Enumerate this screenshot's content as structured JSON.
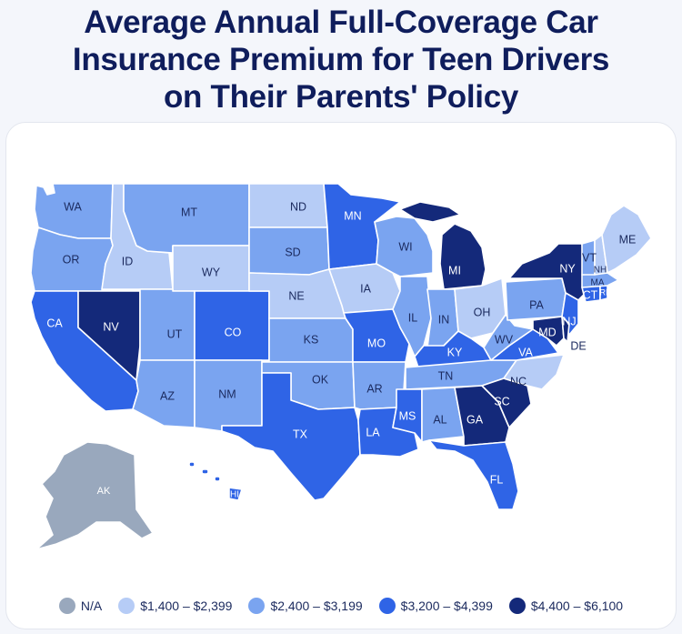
{
  "title_lines": [
    "Average Annual Full-Coverage Car",
    "Insurance Premium for Teen Drivers",
    "on Their Parents' Policy"
  ],
  "colors": {
    "na": "#99a8bd",
    "tier1": "#b6ccf6",
    "tier2": "#7aa4f0",
    "tier3": "#2f64e6",
    "tier4": "#14297a",
    "dark_text": "#1b2a5e",
    "light_text": "#ffffff"
  },
  "legend": [
    {
      "key": "na",
      "label": "N/A"
    },
    {
      "key": "tier1",
      "label": "$1,400 – $2,399"
    },
    {
      "key": "tier2",
      "label": "$2,400 – $3,199"
    },
    {
      "key": "tier3",
      "label": "$3,200 – $4,399"
    },
    {
      "key": "tier4",
      "label": "$4,400 – $6,100"
    }
  ],
  "states": [
    {
      "abbr": "WA",
      "tier": "tier2"
    },
    {
      "abbr": "OR",
      "tier": "tier2"
    },
    {
      "abbr": "CA",
      "tier": "tier3"
    },
    {
      "abbr": "NV",
      "tier": "tier4"
    },
    {
      "abbr": "ID",
      "tier": "tier1"
    },
    {
      "abbr": "MT",
      "tier": "tier2"
    },
    {
      "abbr": "WY",
      "tier": "tier1"
    },
    {
      "abbr": "UT",
      "tier": "tier2"
    },
    {
      "abbr": "AZ",
      "tier": "tier2"
    },
    {
      "abbr": "CO",
      "tier": "tier3"
    },
    {
      "abbr": "NM",
      "tier": "tier2"
    },
    {
      "abbr": "ND",
      "tier": "tier1"
    },
    {
      "abbr": "SD",
      "tier": "tier2"
    },
    {
      "abbr": "NE",
      "tier": "tier1"
    },
    {
      "abbr": "KS",
      "tier": "tier2"
    },
    {
      "abbr": "OK",
      "tier": "tier2"
    },
    {
      "abbr": "TX",
      "tier": "tier3"
    },
    {
      "abbr": "MN",
      "tier": "tier3"
    },
    {
      "abbr": "IA",
      "tier": "tier1"
    },
    {
      "abbr": "MO",
      "tier": "tier3"
    },
    {
      "abbr": "AR",
      "tier": "tier2"
    },
    {
      "abbr": "LA",
      "tier": "tier3"
    },
    {
      "abbr": "WI",
      "tier": "tier2"
    },
    {
      "abbr": "IL",
      "tier": "tier2"
    },
    {
      "abbr": "MI",
      "tier": "tier4"
    },
    {
      "abbr": "IN",
      "tier": "tier2"
    },
    {
      "abbr": "OH",
      "tier": "tier1"
    },
    {
      "abbr": "KY",
      "tier": "tier3"
    },
    {
      "abbr": "TN",
      "tier": "tier2"
    },
    {
      "abbr": "MS",
      "tier": "tier3"
    },
    {
      "abbr": "AL",
      "tier": "tier2"
    },
    {
      "abbr": "GA",
      "tier": "tier4"
    },
    {
      "abbr": "FL",
      "tier": "tier3"
    },
    {
      "abbr": "SC",
      "tier": "tier4"
    },
    {
      "abbr": "NC",
      "tier": "tier1"
    },
    {
      "abbr": "VA",
      "tier": "tier3"
    },
    {
      "abbr": "WV",
      "tier": "tier2"
    },
    {
      "abbr": "PA",
      "tier": "tier2"
    },
    {
      "abbr": "NY",
      "tier": "tier4"
    },
    {
      "abbr": "NJ",
      "tier": "tier3"
    },
    {
      "abbr": "DE",
      "tier": "tier4"
    },
    {
      "abbr": "MD",
      "tier": "tier4"
    },
    {
      "abbr": "CT",
      "tier": "tier3"
    },
    {
      "abbr": "RI",
      "tier": "tier3"
    },
    {
      "abbr": "MA",
      "tier": "tier2"
    },
    {
      "abbr": "VT",
      "tier": "tier2"
    },
    {
      "abbr": "NH",
      "tier": "tier1"
    },
    {
      "abbr": "ME",
      "tier": "tier1"
    },
    {
      "abbr": "AK",
      "tier": "na"
    },
    {
      "abbr": "HI",
      "tier": "tier3"
    }
  ]
}
